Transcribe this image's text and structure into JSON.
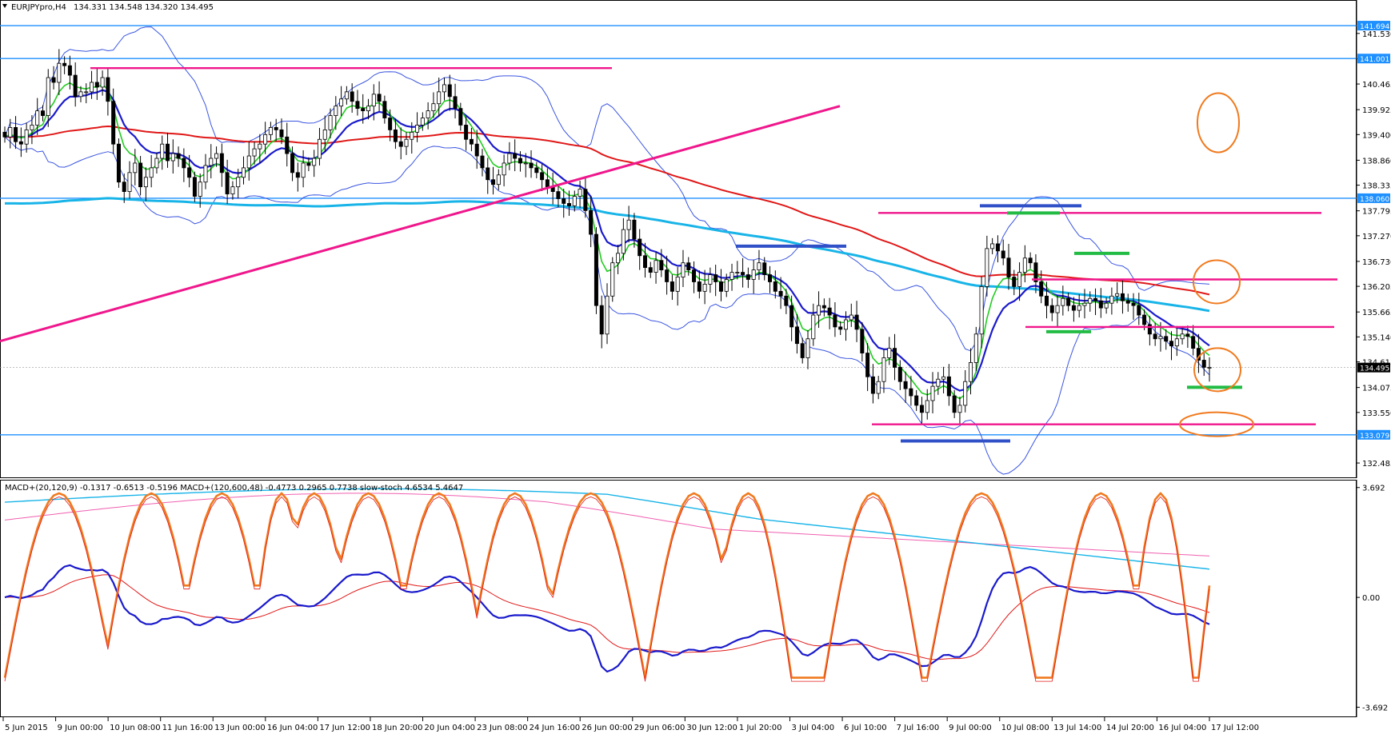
{
  "chart_data": [
    {
      "type": "candlestick",
      "title": "EURJPYpro,H4",
      "ohlc_text": "134.331 134.548 134.320 134.495",
      "ylim": [
        132.2,
        142.2
      ],
      "y_ticks": [
        "141.530",
        "140.995",
        "140.465",
        "139.925",
        "139.400",
        "138.860",
        "138.335",
        "137.795",
        "137.270",
        "136.730",
        "136.205",
        "135.665",
        "135.140",
        "134.615",
        "134.075",
        "133.550",
        "132.485"
      ],
      "y_tick_values": [
        141.53,
        140.995,
        140.465,
        139.925,
        139.4,
        138.86,
        138.335,
        137.795,
        137.27,
        136.73,
        136.205,
        135.665,
        135.14,
        134.615,
        134.075,
        133.55,
        132.485
      ],
      "price_tags": [
        {
          "label": "141.694",
          "value": 141.694,
          "color": "#1e90ff"
        },
        {
          "label": "141.001",
          "value": 141.001,
          "color": "#1e90ff"
        },
        {
          "label": "138.060",
          "value": 138.06,
          "color": "#1e90ff"
        },
        {
          "label": "134.495",
          "value": 134.495,
          "color": "#000000"
        },
        {
          "label": "133.079",
          "value": 133.079,
          "color": "#1e90ff"
        }
      ],
      "x_labels": [
        "5 Jun 2015",
        "9 Jun 00:00",
        "10 Jun 08:00",
        "11 Jun 16:00",
        "13 Jun 00:00",
        "16 Jun 04:00",
        "17 Jun 12:00",
        "18 Jun 20:00",
        "20 Jun 04:00",
        "23 Jun 08:00",
        "24 Jun 16:00",
        "26 Jun 00:00",
        "29 Jun 06:00",
        "30 Jun 12:00",
        "1 Jul 20:00",
        "3 Jul 04:00",
        "6 Jul 10:00",
        "7 Jul 16:00",
        "9 Jul 00:00",
        "10 Jul 08:00",
        "13 Jul 14:00",
        "14 Jul 20:00",
        "16 Jul 04:00",
        "17 Jul 12:00"
      ],
      "close": [
        139.35,
        139.55,
        139.25,
        139.2,
        139.5,
        139.6,
        139.9,
        139.8,
        140.6,
        140.5,
        140.9,
        140.85,
        140.65,
        140.2,
        140.3,
        140.3,
        140.5,
        140.4,
        140.6,
        140.1,
        139.2,
        138.4,
        138.2,
        138.6,
        138.8,
        138.3,
        138.5,
        138.7,
        138.9,
        139.2,
        138.85,
        139.0,
        138.9,
        138.7,
        138.5,
        138.1,
        138.4,
        138.75,
        138.9,
        139.0,
        138.6,
        138.15,
        138.3,
        138.5,
        138.7,
        138.95,
        139.1,
        139.2,
        139.4,
        139.55,
        139.5,
        139.35,
        139.0,
        138.6,
        138.5,
        138.8,
        138.75,
        138.9,
        139.3,
        139.5,
        139.8,
        140.0,
        140.15,
        140.3,
        140.1,
        139.95,
        139.9,
        140.0,
        140.25,
        140.1,
        139.75,
        139.5,
        139.25,
        139.15,
        139.3,
        139.45,
        139.6,
        139.75,
        139.9,
        140.05,
        140.3,
        140.45,
        140.2,
        139.95,
        139.6,
        139.3,
        139.2,
        138.95,
        138.7,
        138.45,
        138.35,
        138.55,
        138.8,
        139.0,
        138.9,
        138.8,
        138.8,
        138.7,
        138.6,
        138.45,
        138.3,
        138.2,
        138.05,
        137.95,
        137.9,
        138.1,
        138.25,
        137.8,
        137.3,
        135.8,
        135.2,
        136.0,
        136.7,
        136.9,
        137.4,
        137.6,
        137.2,
        136.85,
        136.6,
        136.5,
        136.75,
        136.55,
        136.3,
        136.1,
        136.4,
        136.7,
        136.55,
        136.3,
        136.1,
        136.25,
        136.45,
        136.3,
        136.1,
        136.35,
        136.5,
        136.5,
        136.45,
        136.35,
        136.55,
        136.7,
        136.45,
        136.3,
        136.1,
        136.0,
        135.8,
        135.35,
        135.0,
        134.7,
        135.1,
        135.6,
        135.8,
        135.75,
        135.6,
        135.35,
        135.3,
        135.5,
        135.6,
        135.3,
        134.8,
        134.3,
        133.95,
        134.2,
        134.7,
        134.9,
        134.5,
        134.2,
        134.05,
        133.9,
        133.7,
        133.55,
        133.8,
        134.1,
        134.25,
        134.3,
        133.9,
        133.55,
        133.7,
        134.2,
        134.6,
        135.2,
        136.2,
        137.0,
        137.1,
        136.95,
        136.8,
        136.4,
        136.2,
        136.5,
        136.8,
        136.7,
        136.3,
        136.0,
        135.8,
        135.65,
        135.8,
        135.95,
        135.8,
        135.7,
        135.8,
        135.85,
        135.95,
        135.9,
        135.75,
        135.85,
        136.0,
        136.05,
        135.9,
        135.85,
        135.8,
        135.6,
        135.4,
        135.2,
        135.1,
        135.15,
        135.05,
        134.95,
        135.1,
        135.2,
        135.15,
        134.9,
        134.65,
        134.5,
        134.5
      ],
      "ema_green": [
        139.35,
        139.4,
        139.37,
        139.33,
        139.37,
        139.43,
        139.55,
        139.61,
        139.91,
        140.07,
        140.3,
        140.43,
        140.49,
        140.41,
        140.38,
        140.36,
        140.4,
        140.4,
        140.45,
        140.35,
        139.99,
        139.51,
        139.15,
        139.01,
        138.95,
        138.75,
        138.67,
        138.68,
        138.75,
        138.89,
        138.88,
        138.92,
        138.91,
        138.85,
        138.75,
        138.55,
        138.51,
        138.58,
        138.68,
        138.79,
        138.73,
        138.55,
        138.47,
        138.48,
        138.55,
        138.69,
        138.82,
        138.94,
        139.08,
        139.22,
        139.3,
        139.32,
        139.22,
        139.0,
        138.85,
        138.83,
        138.81,
        138.84,
        138.98,
        139.14,
        139.37,
        139.59,
        139.78,
        139.96,
        140.01,
        139.99,
        139.96,
        139.97,
        140.05,
        140.07,
        139.97,
        139.83,
        139.66,
        139.51,
        139.45,
        139.45,
        139.49,
        139.57,
        139.67,
        139.79,
        139.95,
        140.1,
        140.13,
        140.08,
        139.93,
        139.74,
        139.58,
        139.39,
        139.18,
        138.96,
        138.78,
        138.71,
        138.73,
        138.8,
        138.83,
        138.82,
        138.82,
        138.79,
        138.74,
        138.65,
        138.54,
        138.44,
        138.32,
        138.21,
        138.12,
        138.12,
        138.16,
        138.05,
        137.83,
        137.27,
        136.73,
        136.52,
        136.57,
        136.66,
        136.86,
        137.07,
        137.11,
        137.03,
        136.91,
        136.79,
        136.78,
        136.72,
        136.6,
        136.46,
        136.44,
        136.51,
        136.52,
        136.46,
        136.36,
        136.33,
        136.36,
        136.35,
        136.28,
        136.3,
        136.35,
        136.39,
        136.41,
        136.39,
        136.43,
        136.5,
        136.49,
        136.44,
        136.34,
        136.24,
        136.1,
        135.87,
        135.6,
        135.32,
        135.26,
        135.35,
        135.47,
        135.54,
        135.56,
        135.5,
        135.44,
        135.45,
        135.49,
        135.43,
        135.25,
        134.97,
        134.69,
        134.57,
        134.61,
        134.68,
        134.63,
        134.51,
        134.38,
        134.25,
        134.1,
        133.96,
        133.92,
        133.97,
        134.04,
        134.11,
        134.05,
        133.9,
        133.84,
        133.93,
        134.11,
        134.41,
        134.94,
        135.53,
        135.95,
        136.21,
        136.36,
        136.38,
        136.33,
        136.38,
        136.5,
        136.56,
        136.49,
        136.35,
        136.19,
        136.04,
        135.98,
        135.97,
        135.92,
        135.86,
        135.84,
        135.84,
        135.87,
        135.88,
        135.84,
        135.84,
        135.88,
        135.92,
        135.92,
        135.9,
        135.87,
        135.8,
        135.69,
        135.55,
        135.43,
        135.35,
        135.27,
        135.19,
        135.17,
        135.17,
        135.17,
        135.1,
        134.97,
        134.84,
        134.75
      ]
    },
    {
      "type": "line",
      "title": "MACD+(20,120,9) -0.1317 -0.6513 -0.5196  MACD+(120,600,48) -0.4773 0.2965 0.7738  slow-stoch 4.6534 5.4647",
      "ylim": [
        -4.0,
        3.9
      ],
      "y_ticks": [
        "3.692",
        "0.00",
        "-3.692"
      ],
      "y_tick_values": [
        3.692,
        0,
        -3.692
      ],
      "stoch_cycle_centres": [
        10,
        27,
        40,
        51,
        57,
        67,
        80,
        94,
        108,
        127,
        137,
        160,
        180,
        202,
        213,
        226,
        242,
        255,
        262,
        280
      ],
      "stoch_cycle_widths": [
        10,
        9,
        9,
        6,
        8,
        9,
        9,
        9,
        10,
        9,
        8,
        9,
        10,
        9,
        6,
        6,
        5,
        8,
        9,
        10
      ]
    }
  ]
}
